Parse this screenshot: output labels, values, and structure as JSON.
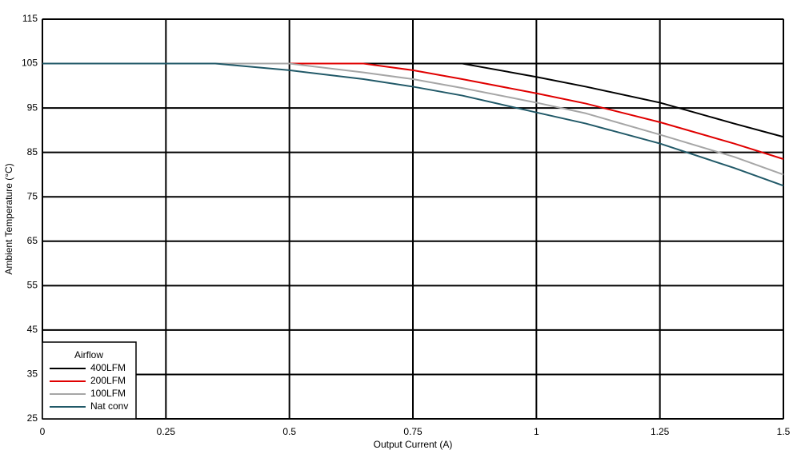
{
  "chart_data": {
    "type": "line",
    "x_label": "Output Current (A)",
    "y_label": "Ambient Temperature (°C)",
    "legend_title": "Airflow",
    "legend_position": "lower left",
    "grid": true,
    "xlim": [
      0,
      1.5
    ],
    "xticks": [
      0,
      0.25,
      0.5,
      0.75,
      1,
      1.25,
      1.5
    ],
    "ylim": [
      25,
      115
    ],
    "yticks": [
      25,
      35,
      45,
      55,
      65,
      75,
      85,
      95,
      105,
      115
    ],
    "x": [
      0,
      0.25,
      0.35,
      0.5,
      0.65,
      0.75,
      0.85,
      1,
      1.1,
      1.25,
      1.4,
      1.5
    ],
    "series": [
      {
        "name": "400LFM",
        "color": "#000000",
        "values": [
          105,
          105,
          105,
          105,
          105,
          105,
          105,
          102,
          99.8,
          96.2,
          91.5,
          88.5
        ]
      },
      {
        "name": "200LFM",
        "color": "#e00000",
        "values": [
          105,
          105,
          105,
          105,
          105,
          103.5,
          101.5,
          98.3,
          96,
          91.8,
          87,
          83.5
        ]
      },
      {
        "name": "100LFM",
        "color": "#a6a6a6",
        "values": [
          105,
          105,
          105,
          105,
          103,
          101.5,
          99.5,
          96.2,
          93.8,
          89,
          84,
          80
        ]
      },
      {
        "name": "Nat conv",
        "color": "#215968",
        "values": [
          105,
          105,
          105,
          103.5,
          101.5,
          99.8,
          97.8,
          94,
          91.5,
          87,
          81.5,
          77.5
        ]
      }
    ]
  }
}
